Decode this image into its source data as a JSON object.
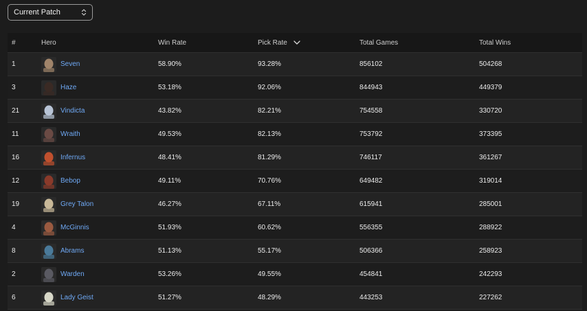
{
  "patch_select": {
    "value": "Current Patch"
  },
  "table": {
    "headers": {
      "id": "#",
      "hero": "Hero",
      "win_rate": "Win Rate",
      "pick_rate": "Pick Rate",
      "total_games": "Total Games",
      "total_wins": "Total Wins"
    },
    "rows": [
      {
        "id": "1",
        "hero": "Seven",
        "win_rate": "58.90%",
        "pick_rate": "93.28%",
        "total_games": "856102",
        "total_wins": "504268",
        "avatar_color": "#a0846a"
      },
      {
        "id": "3",
        "hero": "Haze",
        "win_rate": "53.18%",
        "pick_rate": "92.06%",
        "total_games": "844943",
        "total_wins": "449379",
        "avatar_color": "#3a2a24"
      },
      {
        "id": "21",
        "hero": "Vindicta",
        "win_rate": "43.82%",
        "pick_rate": "82.21%",
        "total_games": "754558",
        "total_wins": "330720",
        "avatar_color": "#b8c4d6"
      },
      {
        "id": "11",
        "hero": "Wraith",
        "win_rate": "49.53%",
        "pick_rate": "82.13%",
        "total_games": "753792",
        "total_wins": "373395",
        "avatar_color": "#6a4a44"
      },
      {
        "id": "16",
        "hero": "Infernus",
        "win_rate": "48.41%",
        "pick_rate": "81.29%",
        "total_games": "746117",
        "total_wins": "361267",
        "avatar_color": "#c0502e"
      },
      {
        "id": "12",
        "hero": "Bebop",
        "win_rate": "49.11%",
        "pick_rate": "70.76%",
        "total_games": "649482",
        "total_wins": "319014",
        "avatar_color": "#8a3a2a"
      },
      {
        "id": "19",
        "hero": "Grey Talon",
        "win_rate": "46.27%",
        "pick_rate": "67.11%",
        "total_games": "615941",
        "total_wins": "285001",
        "avatar_color": "#c8b898"
      },
      {
        "id": "4",
        "hero": "McGinnis",
        "win_rate": "51.93%",
        "pick_rate": "60.62%",
        "total_games": "556355",
        "total_wins": "288922",
        "avatar_color": "#9a5a40"
      },
      {
        "id": "8",
        "hero": "Abrams",
        "win_rate": "51.13%",
        "pick_rate": "55.17%",
        "total_games": "506366",
        "total_wins": "258923",
        "avatar_color": "#4a7a9a"
      },
      {
        "id": "2",
        "hero": "Warden",
        "win_rate": "53.26%",
        "pick_rate": "49.55%",
        "total_games": "454841",
        "total_wins": "242293",
        "avatar_color": "#5a5a62"
      },
      {
        "id": "6",
        "hero": "Lady Geist",
        "win_rate": "51.27%",
        "pick_rate": "48.29%",
        "total_games": "443253",
        "total_wins": "227262",
        "avatar_color": "#d8d8c8"
      }
    ]
  },
  "colors": {
    "background": "#1c1c1c",
    "hero_link": "#6fa9f5"
  },
  "icons": {
    "select_arrows": "updown-chevron-icon",
    "sort": "chevron-down-icon"
  }
}
